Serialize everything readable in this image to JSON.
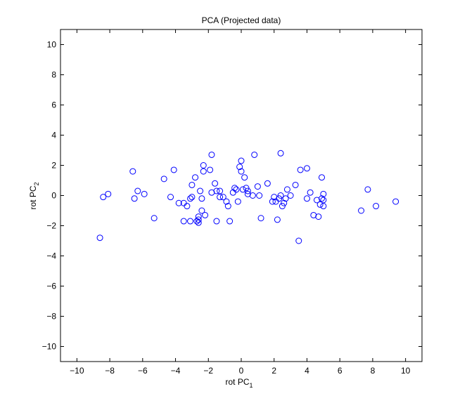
{
  "chart_data": {
    "type": "scatter",
    "title": "PCA (Projected data)",
    "xlabel": "rot PC",
    "xlabel_sub": "1",
    "ylabel": "rot PC",
    "ylabel_sub": "2",
    "xlim": [
      -11,
      11
    ],
    "ylim": [
      -11,
      11
    ],
    "xticks": [
      -10,
      -8,
      -6,
      -4,
      -2,
      0,
      2,
      4,
      6,
      8,
      10
    ],
    "yticks": [
      -10,
      -8,
      -6,
      -4,
      -2,
      0,
      2,
      4,
      6,
      8,
      10
    ],
    "grid": false,
    "marker": "circle",
    "marker_color": "#0000ff",
    "points": [
      {
        "x": -8.6,
        "y": -2.8
      },
      {
        "x": -8.4,
        "y": -0.1
      },
      {
        "x": -8.1,
        "y": 0.1
      },
      {
        "x": -6.6,
        "y": 1.6
      },
      {
        "x": -6.5,
        "y": -0.2
      },
      {
        "x": -6.3,
        "y": 0.3
      },
      {
        "x": -5.9,
        "y": 0.1
      },
      {
        "x": -5.3,
        "y": -1.5
      },
      {
        "x": -4.7,
        "y": 1.1
      },
      {
        "x": -4.3,
        "y": -0.1
      },
      {
        "x": -4.1,
        "y": 1.7
      },
      {
        "x": -3.8,
        "y": -0.5
      },
      {
        "x": -3.5,
        "y": -0.5
      },
      {
        "x": -3.5,
        "y": -1.7
      },
      {
        "x": -3.3,
        "y": -0.7
      },
      {
        "x": -3.1,
        "y": -0.2
      },
      {
        "x": -3.1,
        "y": -1.7
      },
      {
        "x": -3.0,
        "y": -0.1
      },
      {
        "x": -3.0,
        "y": 0.7
      },
      {
        "x": -2.8,
        "y": 1.2
      },
      {
        "x": -2.7,
        "y": -1.7
      },
      {
        "x": -2.6,
        "y": -1.4
      },
      {
        "x": -2.6,
        "y": -1.6
      },
      {
        "x": -2.6,
        "y": -1.8
      },
      {
        "x": -2.5,
        "y": 0.3
      },
      {
        "x": -2.4,
        "y": -0.2
      },
      {
        "x": -2.4,
        "y": -1.0
      },
      {
        "x": -2.3,
        "y": 1.6
      },
      {
        "x": -2.3,
        "y": 2.0
      },
      {
        "x": -2.2,
        "y": -1.3
      },
      {
        "x": -1.9,
        "y": 1.7
      },
      {
        "x": -1.8,
        "y": 0.2
      },
      {
        "x": -1.8,
        "y": 2.7
      },
      {
        "x": -1.6,
        "y": 0.8
      },
      {
        "x": -1.5,
        "y": 0.3
      },
      {
        "x": -1.5,
        "y": -1.7
      },
      {
        "x": -1.3,
        "y": 0.3
      },
      {
        "x": -1.3,
        "y": -0.1
      },
      {
        "x": -1.1,
        "y": -0.1
      },
      {
        "x": -0.9,
        "y": -0.4
      },
      {
        "x": -0.8,
        "y": -0.7
      },
      {
        "x": -0.7,
        "y": -1.7
      },
      {
        "x": -0.5,
        "y": 0.2
      },
      {
        "x": -0.4,
        "y": 0.5
      },
      {
        "x": -0.3,
        "y": 0.4
      },
      {
        "x": -0.2,
        "y": -0.4
      },
      {
        "x": -0.1,
        "y": 1.9
      },
      {
        "x": 0.0,
        "y": 2.3
      },
      {
        "x": 0.0,
        "y": 1.6
      },
      {
        "x": 0.1,
        "y": 0.4
      },
      {
        "x": 0.2,
        "y": 1.2
      },
      {
        "x": 0.3,
        "y": 0.5
      },
      {
        "x": 0.4,
        "y": 0.3
      },
      {
        "x": 0.4,
        "y": 0.1
      },
      {
        "x": 0.7,
        "y": 0.0
      },
      {
        "x": 0.8,
        "y": 2.7
      },
      {
        "x": 1.0,
        "y": 0.6
      },
      {
        "x": 1.1,
        "y": 0.0
      },
      {
        "x": 1.2,
        "y": -1.5
      },
      {
        "x": 1.6,
        "y": 0.8
      },
      {
        "x": 1.9,
        "y": -0.4
      },
      {
        "x": 2.0,
        "y": -0.1
      },
      {
        "x": 2.1,
        "y": -0.4
      },
      {
        "x": 2.2,
        "y": -1.6
      },
      {
        "x": 2.3,
        "y": -0.2
      },
      {
        "x": 2.4,
        "y": 2.8
      },
      {
        "x": 2.4,
        "y": 0.0
      },
      {
        "x": 2.5,
        "y": -0.7
      },
      {
        "x": 2.6,
        "y": -0.5
      },
      {
        "x": 2.7,
        "y": -0.2
      },
      {
        "x": 2.8,
        "y": 0.4
      },
      {
        "x": 3.0,
        "y": 0.0
      },
      {
        "x": 3.3,
        "y": 0.7
      },
      {
        "x": 3.5,
        "y": -3.0
      },
      {
        "x": 3.6,
        "y": 1.7
      },
      {
        "x": 4.0,
        "y": 1.8
      },
      {
        "x": 4.0,
        "y": -0.2
      },
      {
        "x": 4.2,
        "y": 0.2
      },
      {
        "x": 4.4,
        "y": -1.3
      },
      {
        "x": 4.6,
        "y": -0.3
      },
      {
        "x": 4.7,
        "y": -1.4
      },
      {
        "x": 4.8,
        "y": -0.6
      },
      {
        "x": 4.9,
        "y": -0.2
      },
      {
        "x": 4.9,
        "y": 1.2
      },
      {
        "x": 5.0,
        "y": -0.3
      },
      {
        "x": 5.0,
        "y": 0.1
      },
      {
        "x": 5.0,
        "y": -0.7
      },
      {
        "x": 7.3,
        "y": -1.0
      },
      {
        "x": 7.7,
        "y": 0.4
      },
      {
        "x": 8.2,
        "y": -0.7
      },
      {
        "x": 9.4,
        "y": -0.4
      }
    ]
  }
}
